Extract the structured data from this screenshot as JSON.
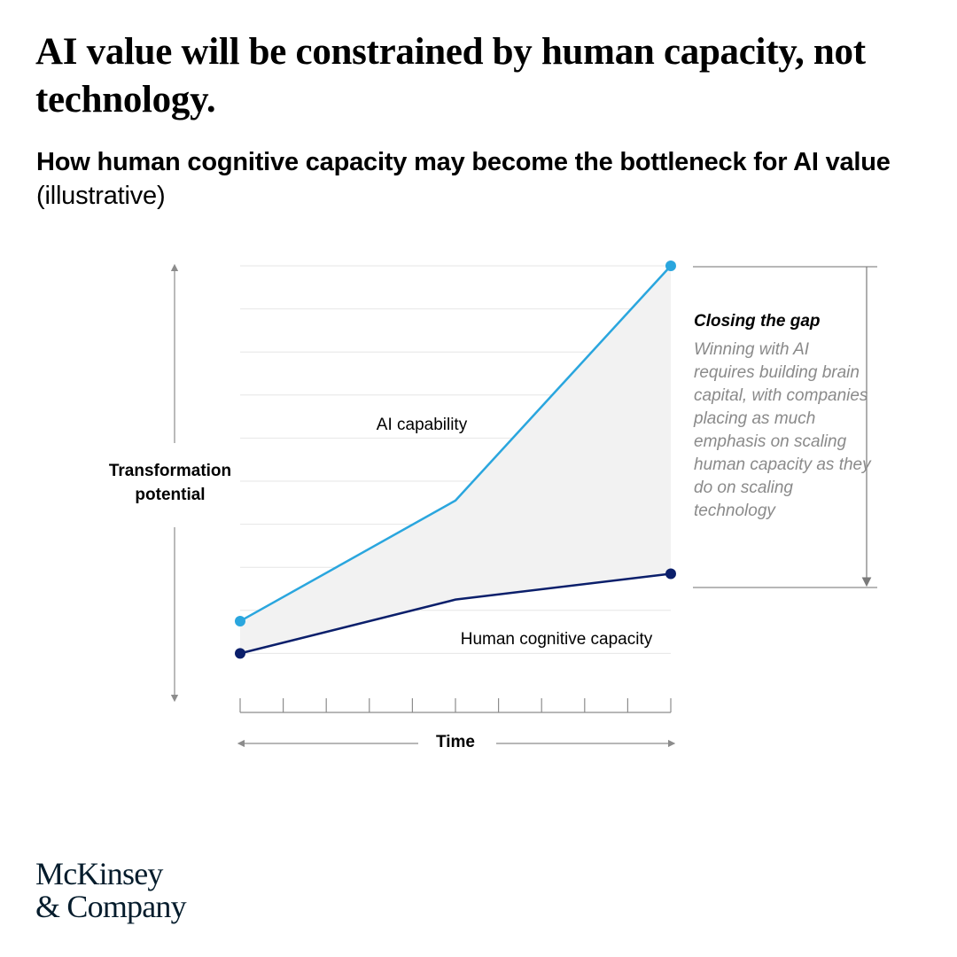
{
  "header": {
    "title": "AI value will be constrained by human capacity, not technology.",
    "subtitle_strong": "How human cognitive capacity may become the bottleneck for AI value",
    "subtitle_light": " (illustrative)"
  },
  "annotation": {
    "title": "Closing the gap",
    "body": "Winning with AI requires building brain capital, with companies placing as much emphasis on scaling human capacity as they do on scaling technology"
  },
  "logo": {
    "line1": "McKinsey",
    "line2": "& Company"
  },
  "colors": {
    "ai_line": "#2aa6de",
    "human_line": "#0b1f6b",
    "gap_fill": "#f2f2f2",
    "grid": "#e6e6e6",
    "axis": "#8c8c8c"
  },
  "chart_data": {
    "type": "line",
    "title": "",
    "xlabel": "Time",
    "ylabel": "Transformation potential",
    "x": [
      0,
      5,
      10
    ],
    "xlim": [
      0,
      10
    ],
    "ylim": [
      0,
      10
    ],
    "series": [
      {
        "name": "AI capability",
        "values": [
          1.75,
          4.55,
          10
        ]
      },
      {
        "name": "Human cognitive capacity",
        "values": [
          1.0,
          2.25,
          2.85
        ]
      }
    ],
    "gridlines": 10,
    "x_ticks": 11,
    "grid": true,
    "legend": "inline labels",
    "shaded_gap": true,
    "annotation_bracket": "right"
  }
}
